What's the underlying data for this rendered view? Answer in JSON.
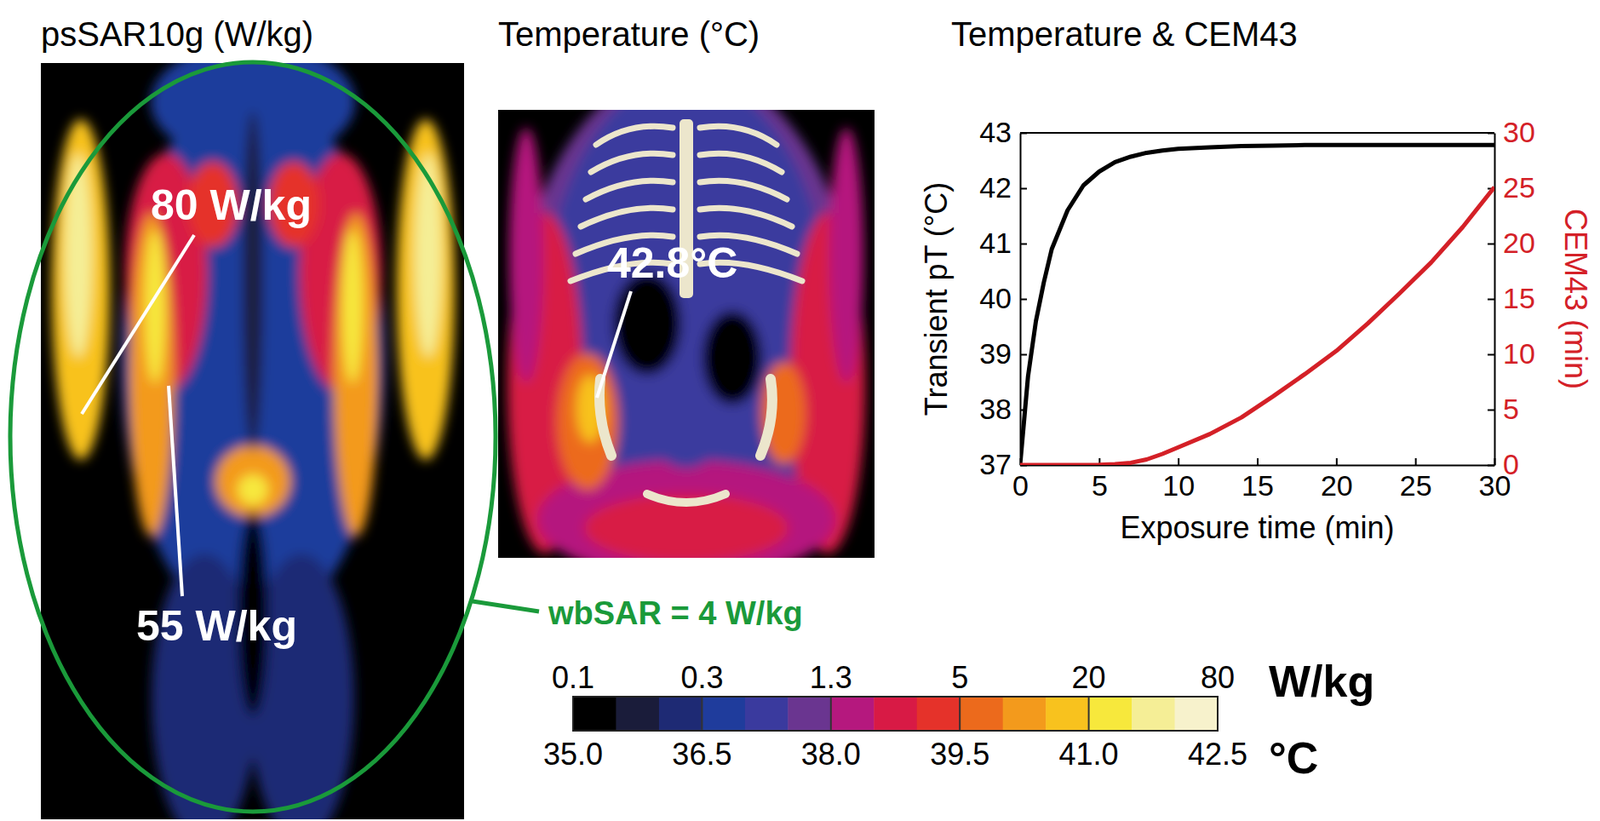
{
  "sar_map": {
    "title": "psSAR10g (W/kg)",
    "annotations": [
      "80 W/kg",
      "55 W/kg"
    ],
    "whole_body_label": "wbSAR = 4 W/kg"
  },
  "temperature_map": {
    "title": "Temperature (°C)",
    "annotation": "42.8°C"
  },
  "colorbar": {
    "colors": [
      "#000000",
      "#1a1c3a",
      "#1e2a74",
      "#1f3c9c",
      "#3a3a9e",
      "#6a3590",
      "#b5187e",
      "#d81a45",
      "#e5322a",
      "#ec6a1c",
      "#f39a1c",
      "#f8c21e",
      "#f7e83c",
      "#f5ee96",
      "#f7f2cc"
    ],
    "temperature_range": [
      35,
      42.5
    ],
    "temperature_ticks": [
      {
        "value": 35,
        "label": "35.0"
      },
      {
        "value": 36.5,
        "label": "36.5"
      },
      {
        "value": 38,
        "label": "38.0"
      },
      {
        "value": 39.5,
        "label": "39.5"
      },
      {
        "value": 41,
        "label": "41.0"
      },
      {
        "value": 42.5,
        "label": "42.5"
      }
    ],
    "temperature_unit": "°C",
    "sar_ticks": [
      0.1,
      0.3,
      1.3,
      5,
      20,
      80
    ],
    "sar_unit": "W/kg"
  },
  "chart_data": {
    "type": "line",
    "title": "Temperature & CEM43",
    "x_label": "Exposure time (min)",
    "y_label": "Transient pT (°C)",
    "y2_label": "CEM43 (min)",
    "x": [
      0,
      0.5,
      1,
      1.5,
      2,
      3,
      4,
      5,
      6,
      7,
      8,
      9,
      10,
      12,
      14,
      16,
      18,
      20,
      22,
      24,
      26,
      28,
      30
    ],
    "series": [
      {
        "color": "#000000",
        "values": [
          37,
          38.6,
          39.6,
          40.3,
          40.9,
          41.6,
          42.05,
          42.3,
          42.47,
          42.57,
          42.64,
          42.68,
          42.71,
          42.74,
          42.76,
          42.77,
          42.78,
          42.78,
          42.78,
          42.78,
          42.78,
          42.78,
          42.78
        ]
      },
      {
        "color": "#d42027",
        "axis": "y2",
        "values": [
          0,
          0,
          0,
          0,
          0,
          0,
          0,
          0.02,
          0.08,
          0.2,
          0.5,
          1.0,
          1.6,
          2.8,
          4.3,
          6.2,
          8.2,
          10.3,
          12.8,
          15.5,
          18.3,
          21.5,
          25.1
        ]
      }
    ],
    "xlim": [
      0,
      30
    ],
    "xticks": [
      0,
      5,
      10,
      15,
      20,
      25,
      30
    ],
    "ylim": [
      37,
      43
    ],
    "yticks": [
      37,
      38,
      39,
      40,
      41,
      42,
      43
    ],
    "y2lim": [
      0,
      30
    ],
    "y2ticks": [
      0,
      5,
      10,
      15,
      20,
      25,
      30
    ],
    "grid": false
  }
}
